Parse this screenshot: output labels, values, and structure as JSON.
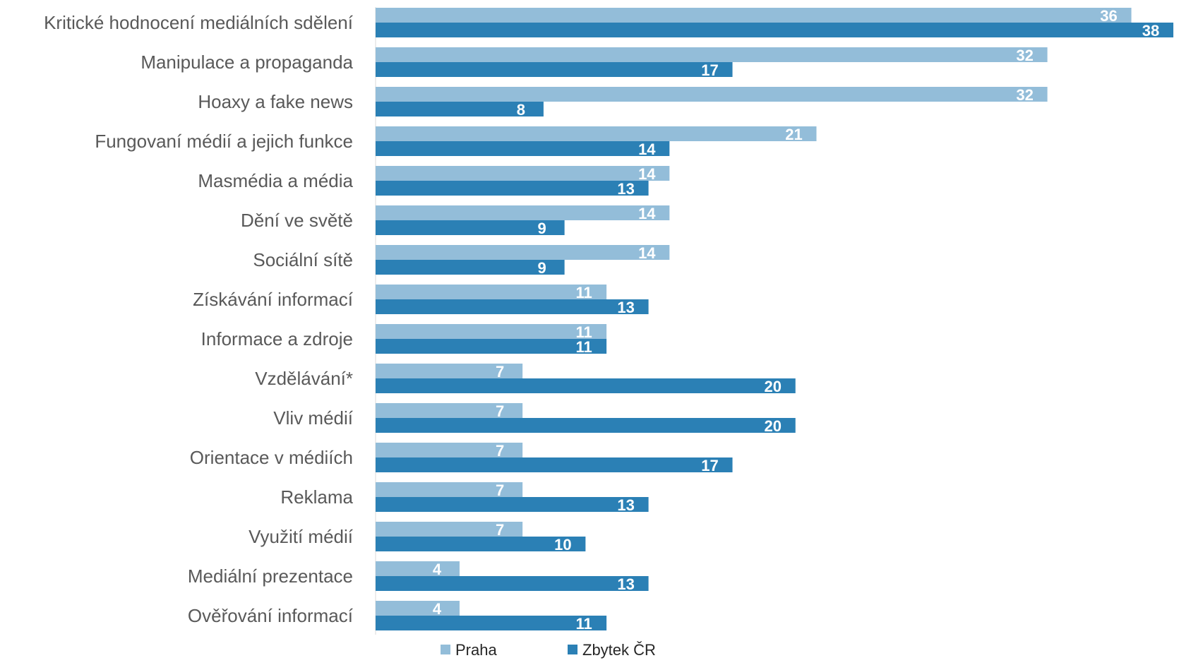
{
  "chart_data": {
    "type": "bar",
    "orientation": "horizontal",
    "categories": [
      "Kritické hodnocení mediálních sdělení",
      "Manipulace a propaganda",
      "Hoaxy a fake news",
      "Fungovaní médií a jejich funkce",
      "Masmédia a média",
      "Dění ve světě",
      "Sociální sítě",
      "Získávání informací",
      "Informace a zdroje",
      "Vzdělávání*",
      "Vliv médií",
      "Orientace v médiích",
      "Reklama",
      "Využití médií",
      "Mediální prezentace",
      "Ověřování informací"
    ],
    "series": [
      {
        "name": "Praha",
        "color": "#93bdd9",
        "values": [
          36,
          32,
          32,
          21,
          14,
          14,
          14,
          11,
          11,
          7,
          7,
          7,
          7,
          7,
          4,
          4
        ],
        "labels": [
          "36",
          "32",
          "32",
          "21",
          "14",
          "14",
          "14",
          "11",
          "11",
          "7",
          "7",
          "7",
          "7",
          "7",
          "4",
          "4"
        ]
      },
      {
        "name": "Zbytek ČR",
        "color": "#2b80b5",
        "values": [
          38,
          17,
          8,
          14,
          13,
          9,
          9,
          13,
          11,
          20,
          20,
          17,
          13,
          10,
          13,
          11
        ],
        "labels": [
          "38",
          "17",
          "8",
          "14",
          "13",
          "9",
          "9",
          "13",
          "11",
          "20",
          "20",
          "17",
          "13",
          "10",
          "13",
          "11"
        ]
      }
    ],
    "xlim": [
      0,
      38
    ],
    "grid": false,
    "legend": "bottom"
  }
}
